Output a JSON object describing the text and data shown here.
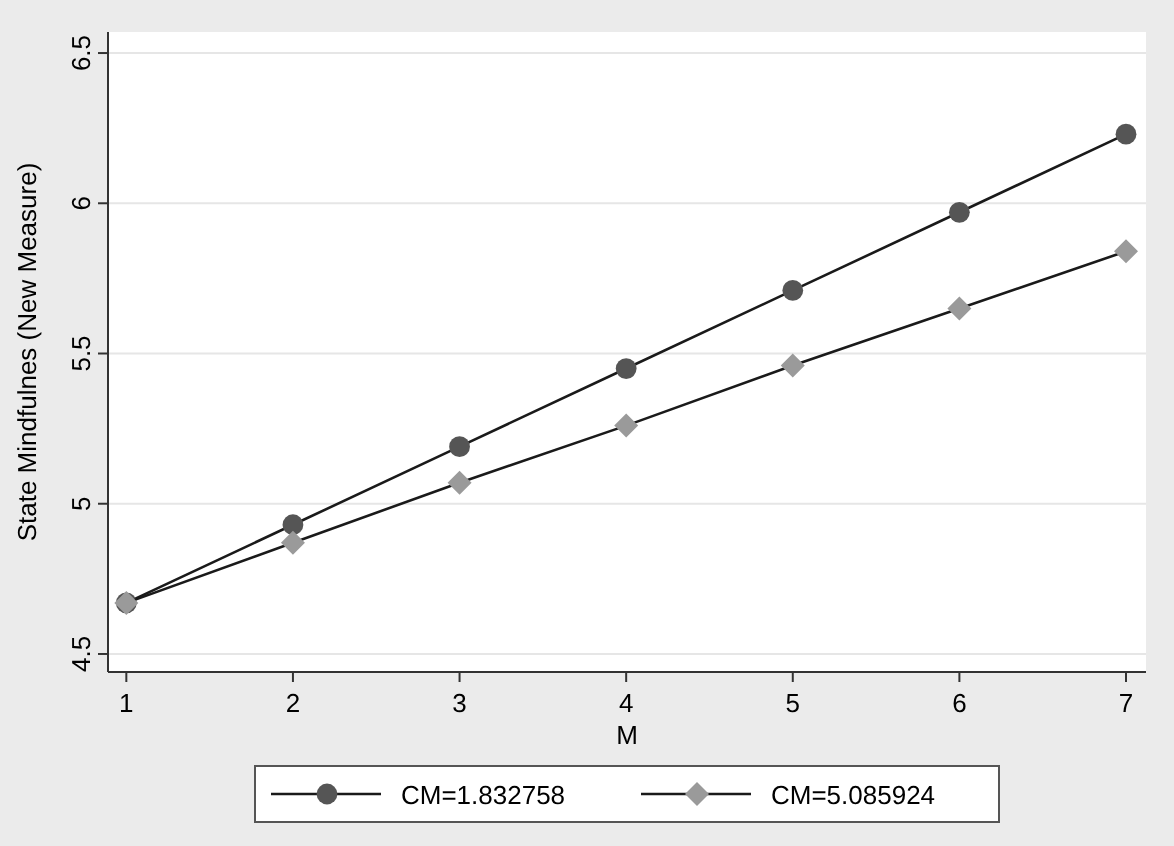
{
  "chart_data": {
    "type": "line",
    "xlabel": "M",
    "ylabel": "State Mindfulnes (New Measure)",
    "x": [
      1,
      2,
      3,
      4,
      5,
      6,
      7
    ],
    "series": [
      {
        "name": "CM=1.832758",
        "color": "#555555",
        "marker": "circle",
        "values": [
          4.67,
          4.93,
          5.19,
          5.45,
          5.71,
          5.97,
          6.23
        ]
      },
      {
        "name": "CM=5.085924",
        "color": "#9a9a9a",
        "marker": "diamond",
        "values": [
          4.67,
          4.87,
          5.07,
          5.26,
          5.46,
          5.65,
          5.84
        ]
      }
    ],
    "xlim": [
      0.89,
      7.12
    ],
    "ylim": [
      4.44,
      6.57
    ],
    "xticks": [
      1,
      2,
      3,
      4,
      5,
      6,
      7
    ],
    "yticks": [
      4.5,
      5,
      5.5,
      6,
      6.5
    ],
    "grid": "y",
    "legend": "bottom"
  }
}
